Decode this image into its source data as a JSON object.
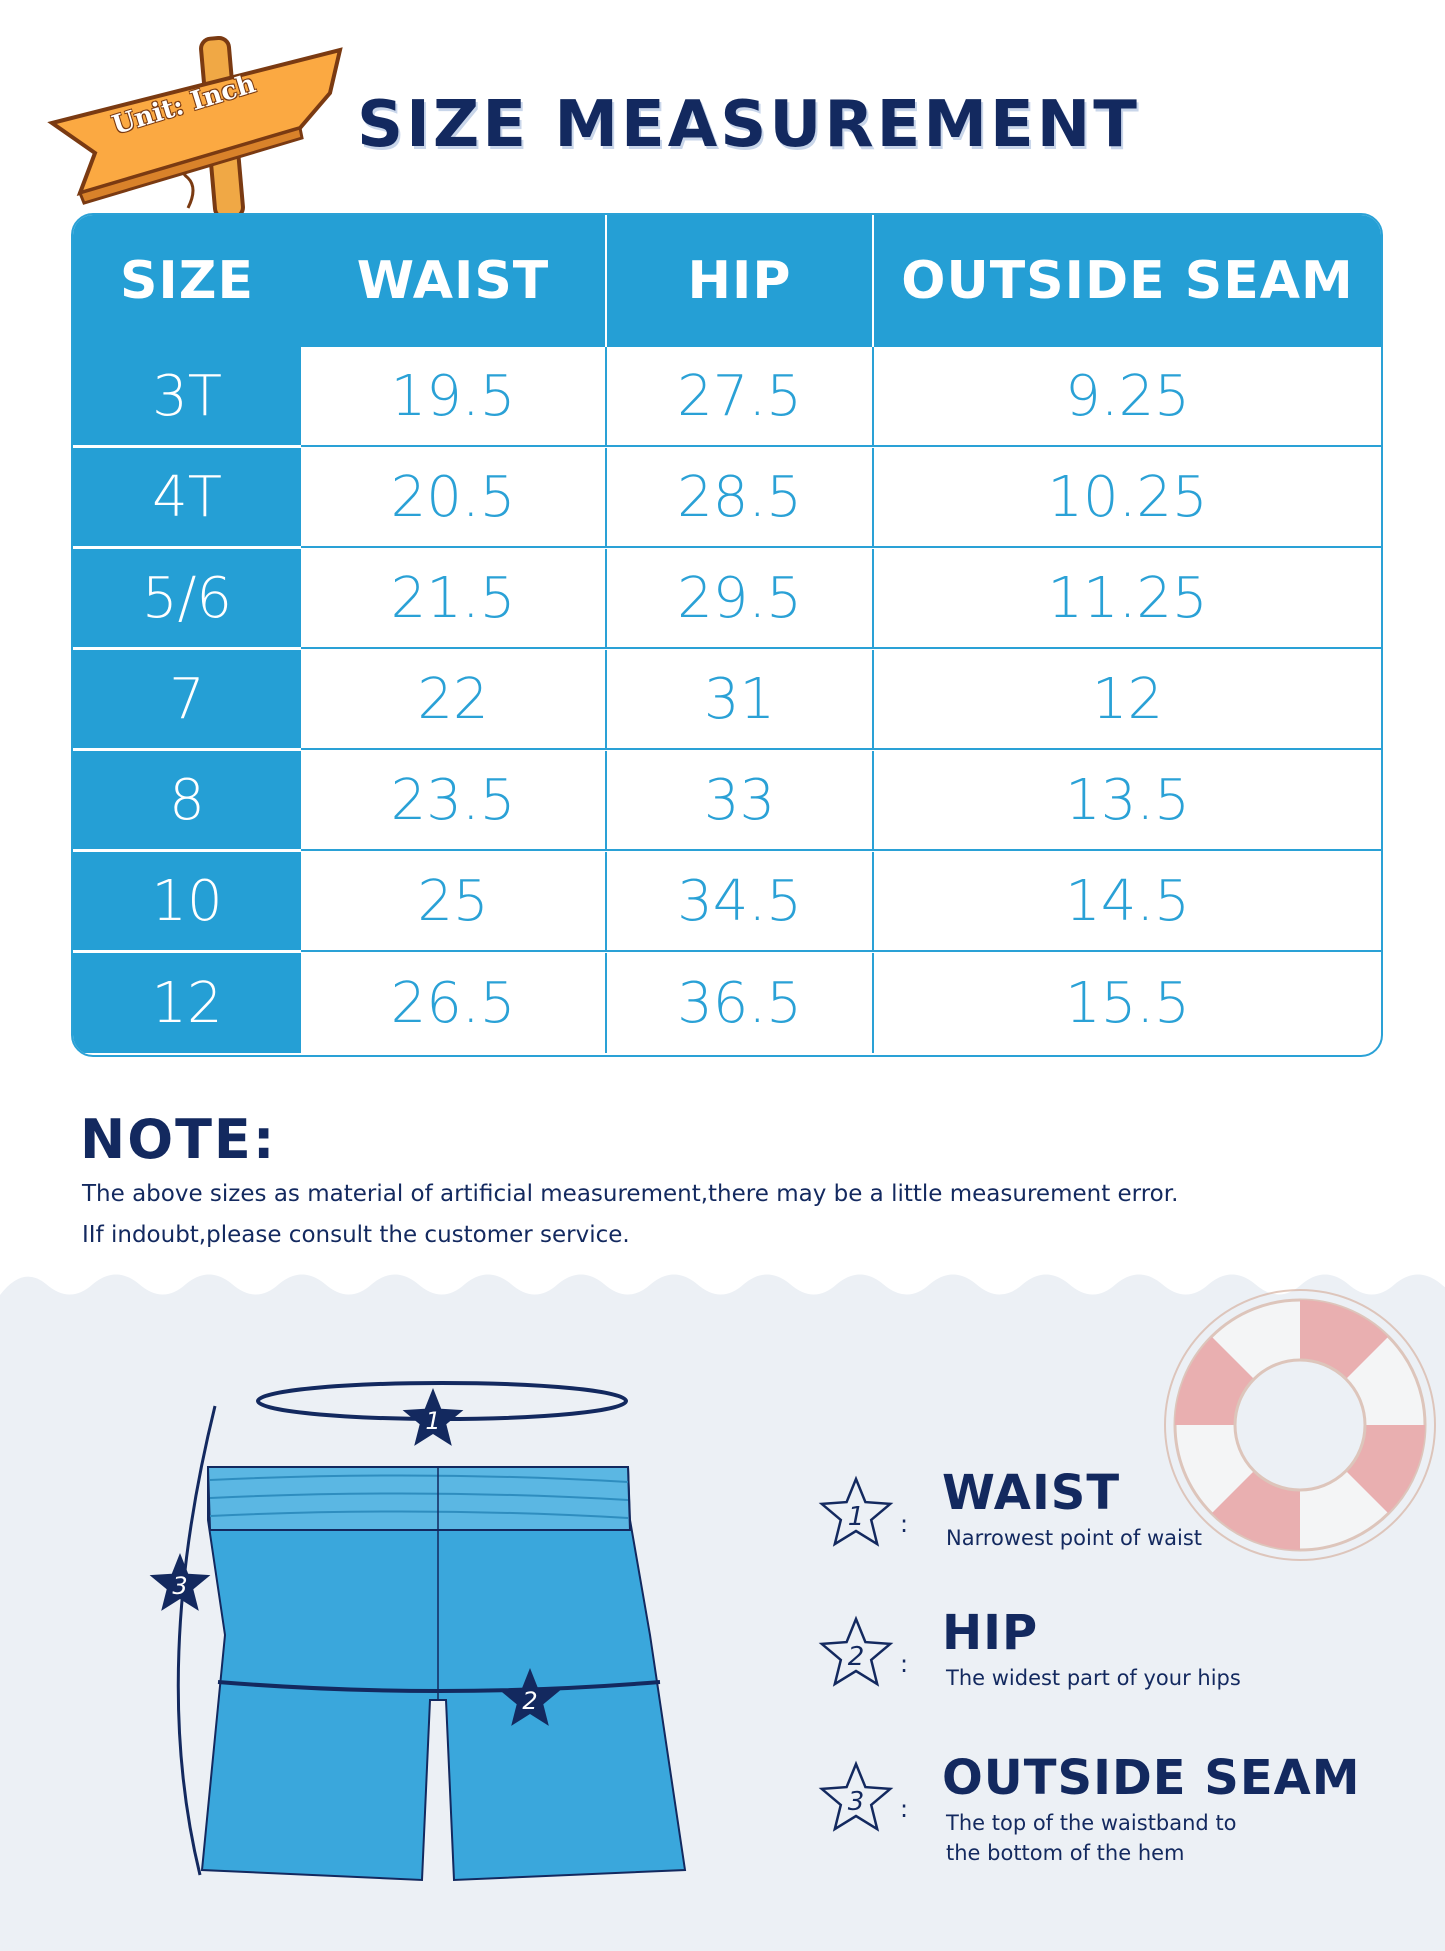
{
  "sign": {
    "text": "Unit: Inch"
  },
  "title": "SIZE MEASUREMENT",
  "table": {
    "headers": [
      "SIZE",
      "WAIST",
      "HIP",
      "OUTSIDE SEAM"
    ],
    "rows": [
      [
        "3T",
        "19.5",
        "27.5",
        "9.25"
      ],
      [
        "4T",
        "20.5",
        "28.5",
        "10.25"
      ],
      [
        "5/6",
        "21.5",
        "29.5",
        "11.25"
      ],
      [
        "7",
        "22",
        "31",
        "12"
      ],
      [
        "8",
        "23.5",
        "33",
        "13.5"
      ],
      [
        "10",
        "25",
        "34.5",
        "14.5"
      ],
      [
        "12",
        "26.5",
        "36.5",
        "15.5"
      ]
    ]
  },
  "note": {
    "heading": "NOTE:",
    "lines": [
      "The above sizes as material of artificial measurement,there may be a little measurement error.",
      "IIf indoubt,please consult the customer service."
    ]
  },
  "legend": [
    {
      "num": "1",
      "title": "WAIST",
      "desc": [
        "Narrowest point of waist"
      ]
    },
    {
      "num": "2",
      "title": "HIP",
      "desc": [
        "The widest part of your hips"
      ]
    },
    {
      "num": "3",
      "title": "OUTSIDE SEAM",
      "desc": [
        "The top of the waistband to",
        "the bottom of the hem"
      ]
    }
  ],
  "diagram": {
    "markers": [
      "1",
      "2",
      "3"
    ]
  },
  "colors": {
    "header_blue": "#259fd5",
    "navy": "#13295f",
    "shorts": "#3aa7dc",
    "sea": "#ecf0f5"
  }
}
